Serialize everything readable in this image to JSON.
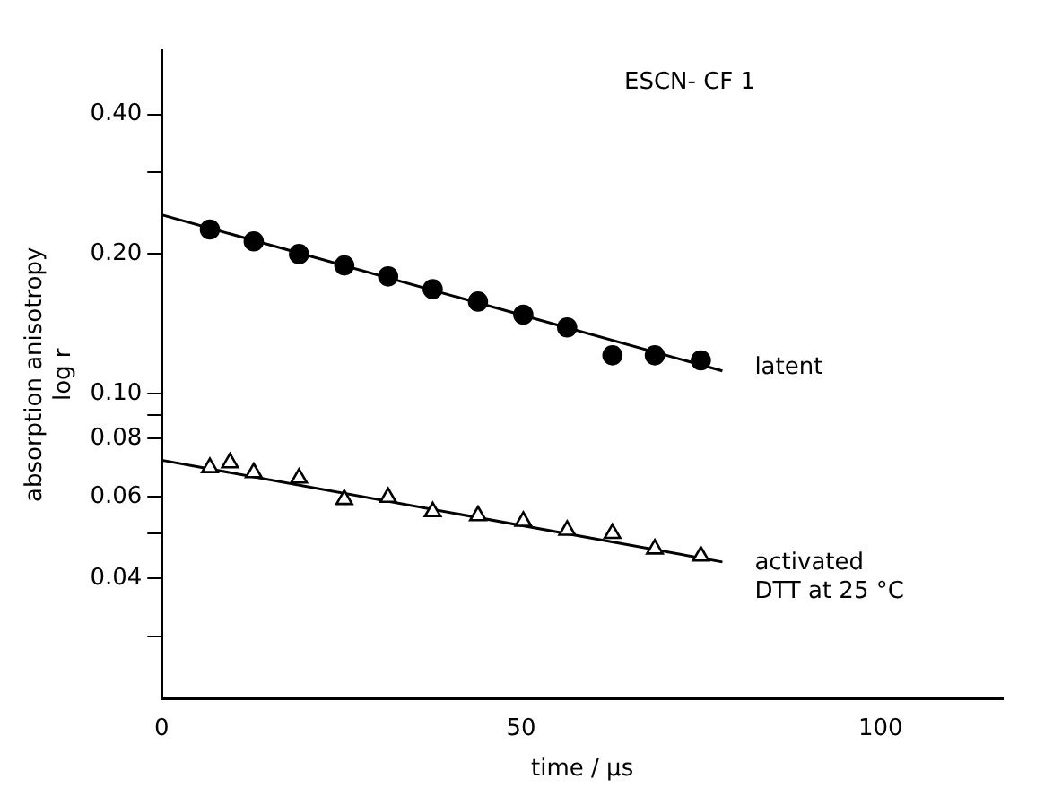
{
  "chart_data": {
    "type": "scatter",
    "xlabel": "time / µs",
    "ylabel": "absorption anisotropy\nlog r",
    "annotations": [
      "ESCN- CF 1"
    ],
    "log": "y",
    "grid": false,
    "legend": false,
    "xlim": [
      0,
      117
    ],
    "xticks": [
      0,
      50,
      100
    ],
    "ylim": [
      0.022,
      0.55
    ],
    "yticks": [
      {
        "value": 0.4,
        "label": "0.40"
      },
      {
        "value": 0.3,
        "label": null
      },
      {
        "value": 0.2,
        "label": "0.20"
      },
      {
        "value": 0.1,
        "label": "0.10"
      },
      {
        "value": 0.09,
        "label": null
      },
      {
        "value": 0.08,
        "label": "0.08"
      },
      {
        "value": 0.06,
        "label": "0.06"
      },
      {
        "value": 0.05,
        "label": null
      },
      {
        "value": 0.04,
        "label": "0.04"
      },
      {
        "value": 0.03,
        "label": null
      }
    ],
    "series": [
      {
        "name": "latent",
        "type": "scatter",
        "marker": "circle",
        "color": "#000000",
        "x": [
          6.7,
          12.8,
          19.1,
          25.4,
          31.5,
          37.7,
          44,
          50.3,
          56.4,
          62.7,
          68.6,
          75
        ],
        "values": [
          0.226,
          0.213,
          0.2,
          0.189,
          0.179,
          0.168,
          0.158,
          0.148,
          0.139,
          0.121,
          0.121,
          0.118
        ]
      },
      {
        "type": "line",
        "marker": "none",
        "line_style": "solid",
        "color": "#000000",
        "x": [
          0,
          78
        ],
        "values": [
          0.243,
          0.112
        ]
      },
      {
        "name": "activated\nDTT at 25 °C",
        "type": "scatter",
        "marker": "triangle",
        "color": "#000000",
        "x": [
          6.7,
          9.5,
          12.8,
          19.1,
          25.4,
          31.5,
          37.7,
          44,
          50.3,
          56.4,
          62.7,
          68.6,
          75
        ],
        "values": [
          0.0693,
          0.071,
          0.0676,
          0.0658,
          0.0592,
          0.0598,
          0.0557,
          0.0546,
          0.0531,
          0.0508,
          0.05,
          0.0463,
          0.0447
        ]
      },
      {
        "type": "line",
        "marker": "none",
        "line_style": "solid",
        "color": "#000000",
        "x": [
          0,
          78
        ],
        "values": [
          0.0719,
          0.0434
        ]
      }
    ]
  }
}
